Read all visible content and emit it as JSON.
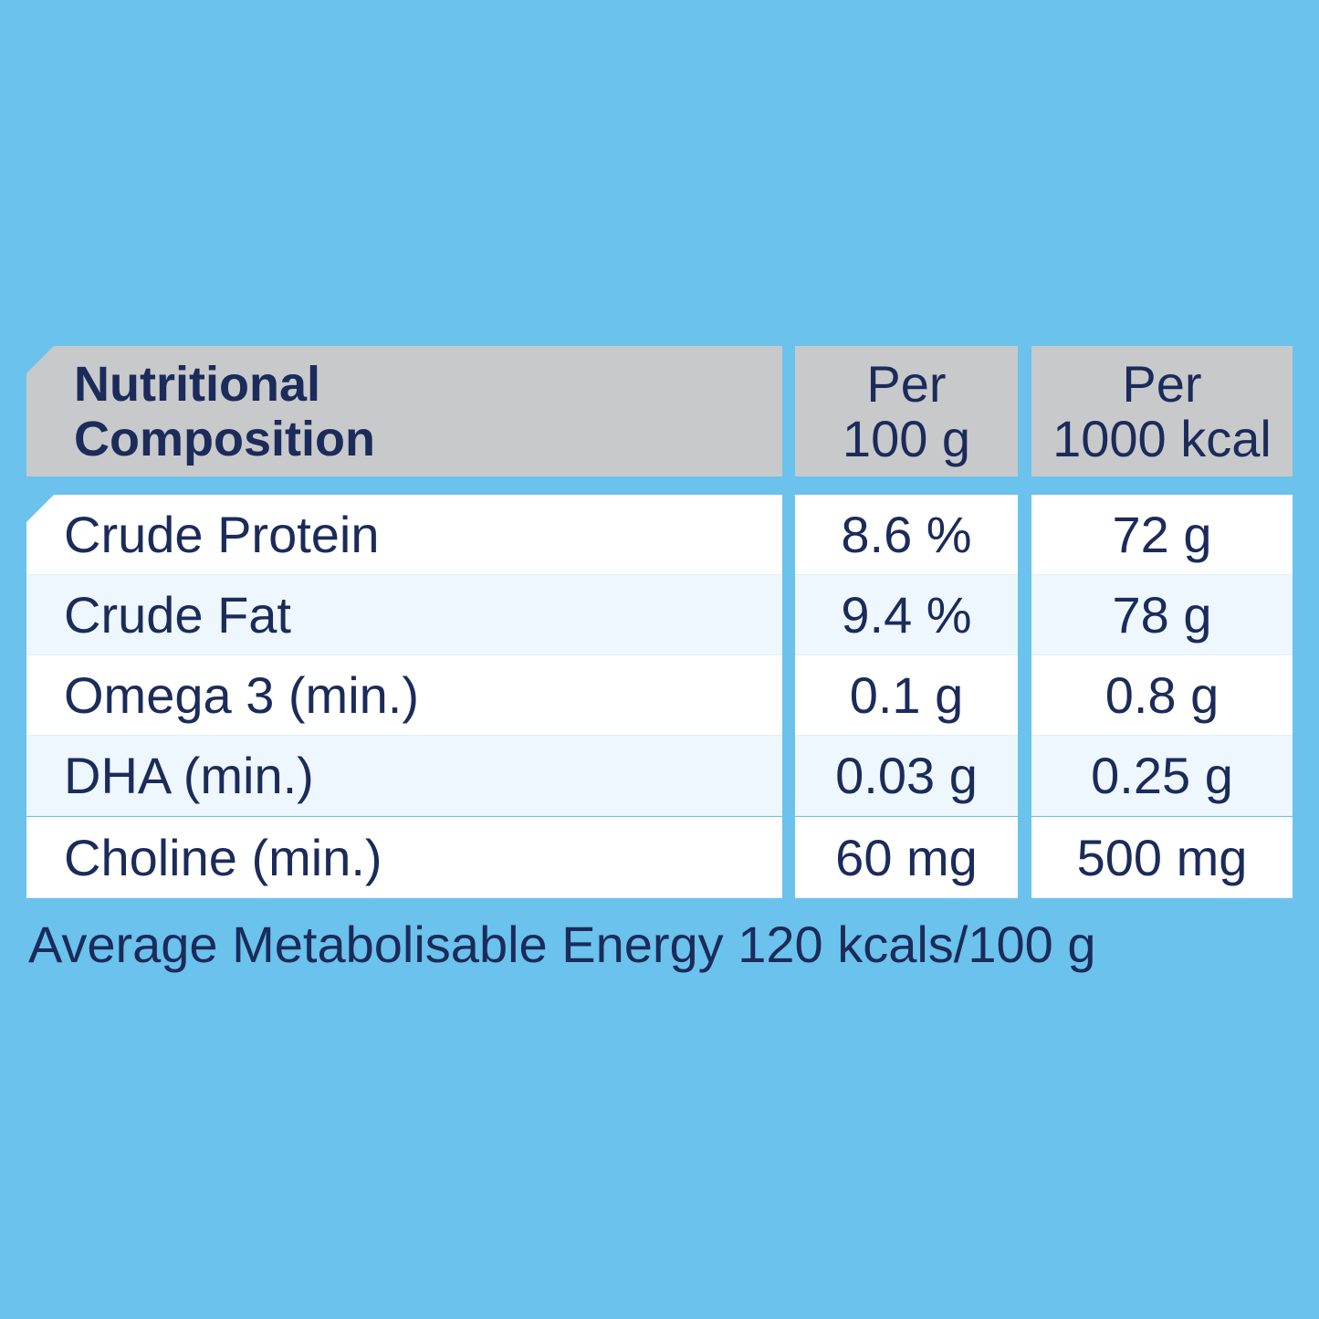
{
  "colors": {
    "background": "#6bc2ec",
    "header_bg": "#c8c9cb",
    "row_white": "#ffffff",
    "row_tint": "#edf7fd",
    "text": "#1b2b5a"
  },
  "table": {
    "headers": {
      "col1": {
        "line1": "Nutritional",
        "line2": "Composition"
      },
      "col2": {
        "line1": "Per",
        "line2": "100 g"
      },
      "col3": {
        "line1": "Per",
        "line2": "1000 kcal"
      }
    },
    "rows": [
      {
        "name": "Crude Protein",
        "per_100g": "8.6 %",
        "per_1000kcal": "72 g"
      },
      {
        "name": "Crude Fat",
        "per_100g": "9.4 %",
        "per_1000kcal": "78 g"
      },
      {
        "name": "Omega 3 (min.)",
        "per_100g": "0.1 g",
        "per_1000kcal": "0.8 g"
      },
      {
        "name": "DHA (min.)",
        "per_100g": "0.03 g",
        "per_1000kcal": "0.25 g"
      },
      {
        "name": "Choline (min.)",
        "per_100g": "60 mg",
        "per_1000kcal": "500 mg"
      }
    ]
  },
  "footnote": "Average Metabolisable Energy 120 kcals/100 g"
}
